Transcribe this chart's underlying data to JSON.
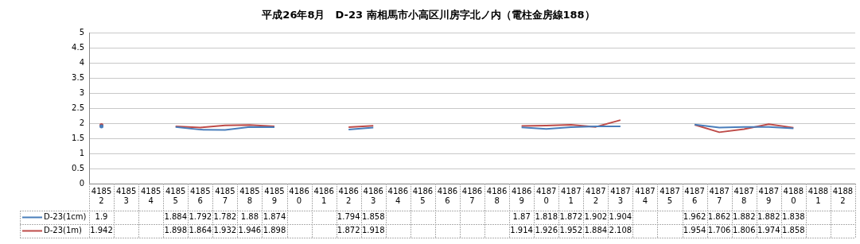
{
  "chart_data": {
    "type": "line",
    "title": "平成26年8月　D-23 南相馬市小高区川房字北ノ内（電柱金房線188）",
    "categories": [
      "41852",
      "41853",
      "41854",
      "41855",
      "41856",
      "41857",
      "41858",
      "41859",
      "41860",
      "41861",
      "41862",
      "41863",
      "41864",
      "41865",
      "41866",
      "41867",
      "41868",
      "41869",
      "41870",
      "41871",
      "41872",
      "41873",
      "41874",
      "41875",
      "41876",
      "41877",
      "41878",
      "41879",
      "41880",
      "41881",
      "41882"
    ],
    "series": [
      {
        "name": "D-23(1cm)",
        "color": "#4a7ebb",
        "values": [
          1.9,
          null,
          null,
          1.884,
          1.792,
          1.782,
          1.88,
          1.874,
          null,
          null,
          1.794,
          1.858,
          null,
          null,
          null,
          null,
          null,
          1.87,
          1.818,
          1.872,
          1.902,
          1.904,
          null,
          null,
          1.962,
          1.862,
          1.882,
          1.882,
          1.838,
          null,
          null
        ]
      },
      {
        "name": "D-23(1m)",
        "color": "#be4b48",
        "values": [
          1.942,
          null,
          null,
          1.898,
          1.864,
          1.932,
          1.946,
          1.898,
          null,
          null,
          1.872,
          1.918,
          null,
          null,
          null,
          null,
          null,
          1.914,
          1.926,
          1.952,
          1.884,
          2.108,
          null,
          null,
          1.954,
          1.706,
          1.806,
          1.974,
          1.858,
          null,
          null
        ]
      }
    ],
    "ylim": [
      0,
      5
    ],
    "yticks": [
      0,
      0.5,
      1,
      1.5,
      2,
      2.5,
      3,
      3.5,
      4,
      4.5,
      5
    ],
    "grid": "y",
    "legend": "bottom left",
    "marker": "none",
    "line_style": "solid",
    "data_labels": true
  }
}
